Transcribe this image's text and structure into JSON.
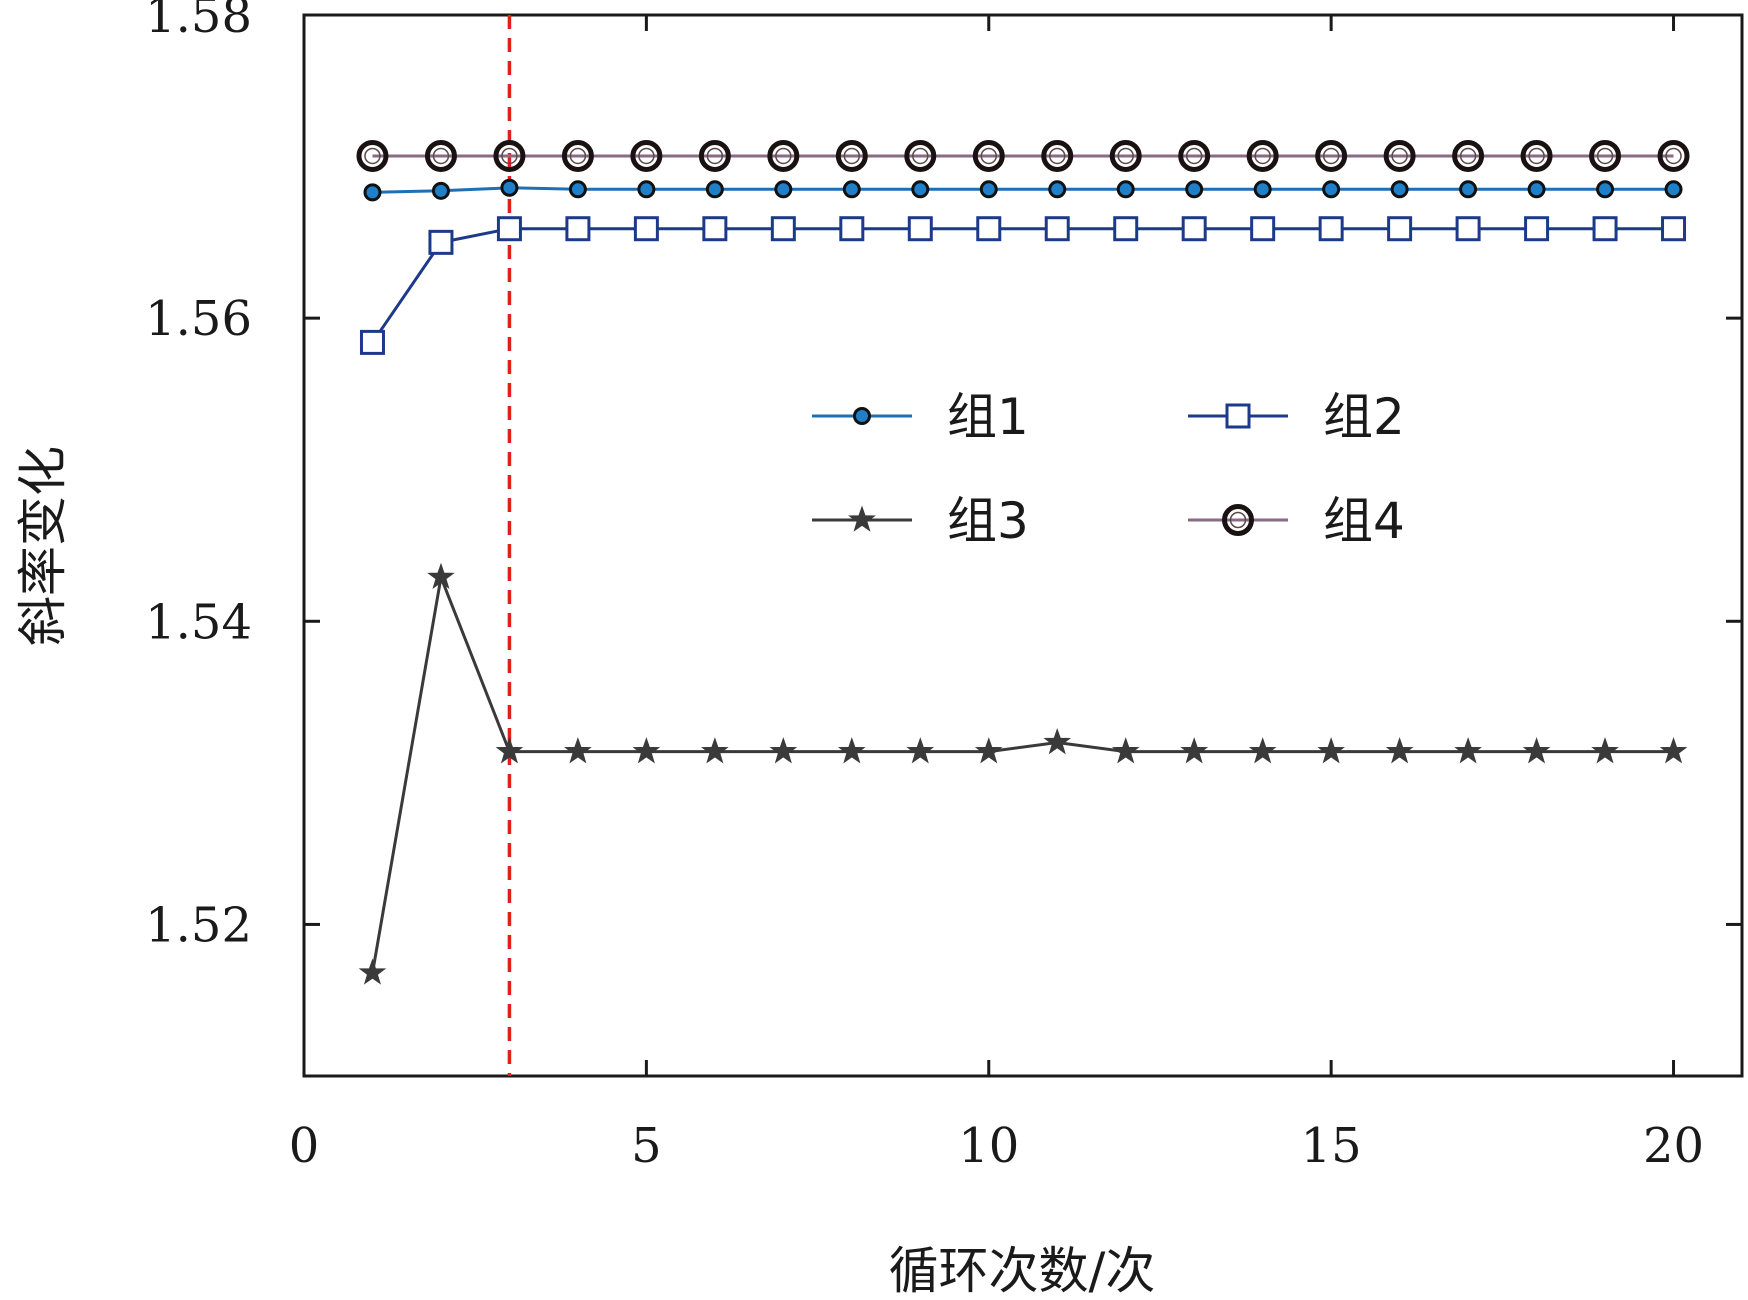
{
  "chart_data": {
    "type": "line",
    "title": "",
    "xlabel": "循环次数/次",
    "ylabel": "斜率变化",
    "xlim": [
      0,
      21
    ],
    "ylim": [
      1.51,
      1.58
    ],
    "xticks": [
      0,
      5,
      10,
      15,
      20
    ],
    "xtick_labels": [
      "0",
      "5",
      "10",
      "15",
      "20"
    ],
    "yticks": [
      1.52,
      1.54,
      1.56,
      1.58
    ],
    "ytick_labels": [
      "1.52",
      "1.54",
      "1.56",
      "1.58"
    ],
    "grid": false,
    "legend_position": "center-right",
    "reference_line": {
      "orientation": "vertical",
      "x": 3,
      "color": "#e0201b",
      "style": "dashed"
    },
    "x": [
      1,
      2,
      3,
      4,
      5,
      6,
      7,
      8,
      9,
      10,
      11,
      12,
      13,
      14,
      15,
      16,
      17,
      18,
      19,
      20
    ],
    "series": [
      {
        "name": "组1",
        "color": "#1f6fb5",
        "marker": "dot",
        "values": [
          1.5683,
          1.5684,
          1.5686,
          1.5685,
          1.5685,
          1.5685,
          1.5685,
          1.5685,
          1.5685,
          1.5685,
          1.5685,
          1.5685,
          1.5685,
          1.5685,
          1.5685,
          1.5685,
          1.5685,
          1.5685,
          1.5685,
          1.5685
        ]
      },
      {
        "name": "组2",
        "color": "#1d3a8a",
        "marker": "square",
        "values": [
          1.5584,
          1.565,
          1.5659,
          1.5659,
          1.5659,
          1.5659,
          1.5659,
          1.5659,
          1.5659,
          1.5659,
          1.5659,
          1.5659,
          1.5659,
          1.5659,
          1.5659,
          1.5659,
          1.5659,
          1.5659,
          1.5659,
          1.5659
        ]
      },
      {
        "name": "组3",
        "color": "#3a3a3a",
        "marker": "star",
        "values": [
          1.5168,
          1.5429,
          1.5314,
          1.5314,
          1.5314,
          1.5314,
          1.5314,
          1.5314,
          1.5314,
          1.5314,
          1.532,
          1.5314,
          1.5314,
          1.5314,
          1.5314,
          1.5314,
          1.5314,
          1.5314,
          1.5314,
          1.5314
        ]
      },
      {
        "name": "组4",
        "color": "#8a6a86",
        "marker": "ring",
        "values": [
          1.5707,
          1.5707,
          1.5707,
          1.5707,
          1.5707,
          1.5707,
          1.5707,
          1.5707,
          1.5707,
          1.5707,
          1.5707,
          1.5707,
          1.5707,
          1.5707,
          1.5707,
          1.5707,
          1.5707,
          1.5707,
          1.5707,
          1.5707
        ]
      }
    ]
  }
}
